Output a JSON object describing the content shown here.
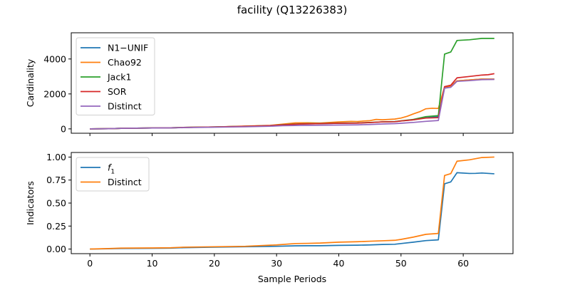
{
  "chart_data": {
    "title": "facility (Q13226383)",
    "panels": [
      {
        "type": "line",
        "ylabel": "Cardinality",
        "xlabel": "",
        "xlim": [
          -3,
          68
        ],
        "ylim": [
          -250,
          5500
        ],
        "yticks": [
          0,
          2000,
          4000
        ],
        "ytick_labels": [
          "0",
          "2000",
          "4000"
        ],
        "legend_position": "upper-left",
        "series": [
          {
            "name": "N1−UNIF",
            "color": "#1f77b4",
            "x": [
              0,
              3,
              5,
              10,
              13,
              15,
              20,
              25,
              29,
              31,
              34,
              37,
              40,
              43,
              45,
              47,
              49,
              50,
              52,
              54,
              56,
              57,
              58,
              59,
              61,
              63,
              65
            ],
            "y": [
              0,
              10,
              30,
              50,
              60,
              80,
              110,
              150,
              190,
              230,
              280,
              300,
              320,
              330,
              360,
              400,
              410,
              450,
              520,
              640,
              700,
              2350,
              2450,
              2750,
              2800,
              2850,
              2850
            ]
          },
          {
            "name": "Chao92",
            "color": "#ff7f0e",
            "x": [
              0,
              3,
              5,
              10,
              13,
              15,
              20,
              25,
              29,
              31,
              33,
              35,
              37,
              40,
              42,
              43,
              44,
              45,
              46,
              47,
              48,
              49,
              50,
              51,
              52,
              53,
              54,
              55,
              56,
              57,
              58,
              59,
              61,
              63,
              65
            ],
            "y": [
              0,
              10,
              30,
              50,
              60,
              80,
              110,
              160,
              200,
              270,
              340,
              350,
              330,
              400,
              430,
              420,
              450,
              470,
              540,
              520,
              540,
              560,
              620,
              720,
              860,
              980,
              1150,
              1180,
              1170,
              2400,
              2450,
              2750,
              2800,
              2850,
              2850
            ]
          },
          {
            "name": "Jack1",
            "color": "#2ca02c",
            "x": [
              0,
              3,
              5,
              10,
              13,
              15,
              20,
              25,
              29,
              31,
              34,
              37,
              40,
              43,
              45,
              47,
              49,
              50,
              52,
              54,
              56,
              57,
              58,
              59,
              61,
              63,
              65
            ],
            "y": [
              0,
              10,
              30,
              50,
              60,
              80,
              110,
              150,
              190,
              240,
              290,
              310,
              330,
              340,
              370,
              400,
              420,
              460,
              540,
              700,
              760,
              4280,
              4400,
              5060,
              5100,
              5180,
              5180
            ]
          },
          {
            "name": "SOR",
            "color": "#d62728",
            "x": [
              0,
              3,
              5,
              10,
              13,
              15,
              20,
              25,
              29,
              31,
              34,
              37,
              40,
              43,
              45,
              47,
              49,
              50,
              52,
              54,
              56,
              57,
              58,
              59,
              61,
              63,
              64,
              65
            ],
            "y": [
              0,
              10,
              30,
              50,
              60,
              80,
              110,
              150,
              190,
              230,
              280,
              300,
              320,
              330,
              360,
              400,
              410,
              450,
              520,
              620,
              640,
              2420,
              2500,
              2920,
              3000,
              3080,
              3100,
              3160
            ]
          },
          {
            "name": "Distinct",
            "color": "#9467bd",
            "x": [
              0,
              3,
              5,
              10,
              13,
              15,
              20,
              25,
              29,
              31,
              34,
              37,
              40,
              43,
              45,
              47,
              49,
              50,
              52,
              54,
              56,
              57,
              58,
              59,
              61,
              63,
              65
            ],
            "y": [
              0,
              10,
              30,
              50,
              55,
              70,
              95,
              120,
              150,
              180,
              200,
              210,
              220,
              230,
              250,
              280,
              300,
              320,
              370,
              430,
              480,
              2330,
              2380,
              2720,
              2760,
              2820,
              2830
            ]
          }
        ]
      },
      {
        "type": "line",
        "ylabel": "Indicators",
        "xlabel": "Sample Periods",
        "xlim": [
          -3,
          68
        ],
        "ylim": [
          -0.05,
          1.05
        ],
        "yticks": [
          0.0,
          0.25,
          0.5,
          0.75,
          1.0
        ],
        "ytick_labels": [
          "0.00",
          "0.25",
          "0.50",
          "0.75",
          "1.00"
        ],
        "xticks": [
          0,
          10,
          20,
          30,
          40,
          50,
          60
        ],
        "xtick_labels": [
          "0",
          "10",
          "20",
          "30",
          "40",
          "50",
          "60"
        ],
        "legend_position": "upper-left",
        "series": [
          {
            "name": "f1",
            "color": "#1f77b4",
            "x": [
              0,
              3,
              5,
              10,
              13,
              15,
              20,
              25,
              30,
              33,
              35,
              37,
              40,
              43,
              45,
              47,
              49,
              50,
              52,
              54,
              56,
              57,
              58,
              59,
              61,
              62,
              63,
              65
            ],
            "y": [
              0.0,
              0.003,
              0.006,
              0.008,
              0.01,
              0.015,
              0.02,
              0.025,
              0.03,
              0.035,
              0.036,
              0.036,
              0.04,
              0.042,
              0.045,
              0.05,
              0.052,
              0.06,
              0.075,
              0.092,
              0.1,
              0.71,
              0.73,
              0.83,
              0.822,
              0.823,
              0.827,
              0.818
            ]
          },
          {
            "name": "Distinct",
            "color": "#ff7f0e",
            "x": [
              0,
              3,
              5,
              10,
              13,
              15,
              20,
              25,
              30,
              33,
              35,
              37,
              40,
              43,
              45,
              47,
              49,
              50,
              52,
              54,
              56,
              57,
              58,
              59,
              61,
              63,
              65
            ],
            "y": [
              0.0,
              0.005,
              0.01,
              0.012,
              0.014,
              0.02,
              0.025,
              0.03,
              0.045,
              0.06,
              0.062,
              0.065,
              0.075,
              0.08,
              0.085,
              0.09,
              0.095,
              0.105,
              0.13,
              0.16,
              0.17,
              0.8,
              0.82,
              0.955,
              0.97,
              0.995,
              1.0
            ]
          }
        ]
      }
    ]
  }
}
